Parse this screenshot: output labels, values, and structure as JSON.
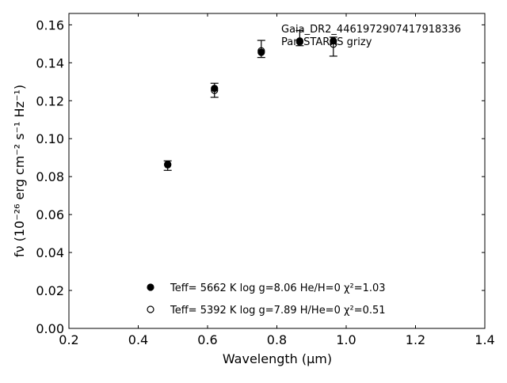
{
  "chart_data": {
    "type": "scatter",
    "xlabel": "Wavelength (µm)",
    "ylabel": "fν (10⁻²⁶ erg cm⁻² s⁻¹ Hz⁻¹)",
    "xlim": [
      0.2,
      1.4
    ],
    "ylim": [
      0.0,
      0.166
    ],
    "x_ticks": [
      "0.2",
      "0.4",
      "0.6",
      "0.8",
      "1.0",
      "1.2",
      "1.4"
    ],
    "y_ticks": [
      "0.00",
      "0.02",
      "0.04",
      "0.06",
      "0.08",
      "0.10",
      "0.12",
      "0.14",
      "0.16"
    ],
    "annotation": {
      "line1": "Gaia_DR2_4461972907417918336",
      "line2": "Pan-STARRS grizy"
    },
    "observed": {
      "x": [
        0.485,
        0.62,
        0.755,
        0.866,
        0.963
      ],
      "y": [
        0.0858,
        0.1255,
        0.1473,
        0.153,
        0.1485
      ],
      "yerr": [
        0.0025,
        0.0037,
        0.0045,
        0.004,
        0.005
      ]
    },
    "series": [
      {
        "marker": "filled",
        "x": [
          0.485,
          0.62,
          0.755,
          0.866,
          0.963
        ],
        "y": [
          0.0865,
          0.1265,
          0.1455,
          0.1515,
          0.1515
        ]
      },
      {
        "marker": "open",
        "x": [
          0.485,
          0.62,
          0.755,
          0.866,
          0.963
        ],
        "y": [
          0.0862,
          0.1255,
          0.1463,
          0.151,
          0.1498
        ]
      }
    ],
    "legend": {
      "placement": "lower-center",
      "entries": [
        {
          "marker": "filled",
          "label": "Teff=  5662 K  log g=8.06  He/H=0  χ²=1.03"
        },
        {
          "marker": "open",
          "label": "Teff=  5392 K  log g=7.89  H/He=0  χ²=0.51"
        }
      ]
    },
    "grid": false
  }
}
